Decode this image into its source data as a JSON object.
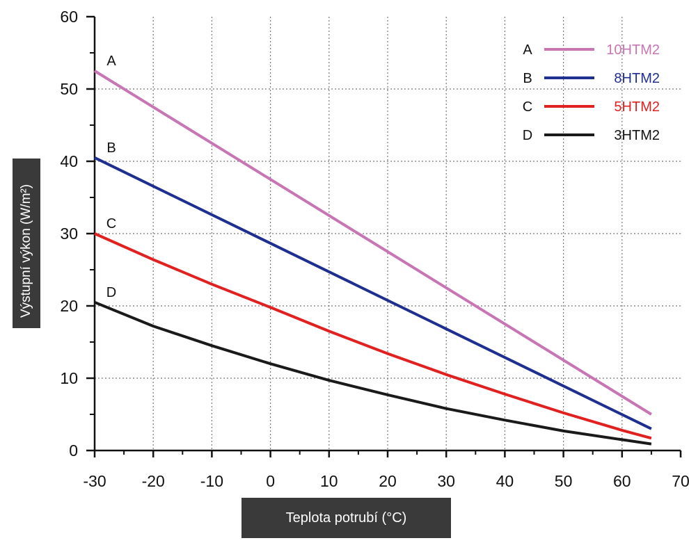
{
  "chart_data": {
    "type": "line",
    "title": "",
    "xlabel": "Teplota potrubí (°C)",
    "ylabel": "Výstupní výkon (W/m²)",
    "xlim": [
      -30,
      70
    ],
    "ylim": [
      0,
      60
    ],
    "xticks": [
      "-30",
      "-20",
      "-10",
      "0",
      "10",
      "20",
      "30",
      "40",
      "50",
      "60",
      "70"
    ],
    "yticks": [
      "0",
      "10",
      "20",
      "30",
      "40",
      "50",
      "60"
    ],
    "grid": true,
    "legend_position": "top-right",
    "series": [
      {
        "letter": "A",
        "name": "10HTM2",
        "color": "#c875b4",
        "x": [
          -30,
          65
        ],
        "y": [
          52.5,
          5.0
        ]
      },
      {
        "letter": "B",
        "name": "8HTM2",
        "color": "#1f2f8f",
        "x": [
          -30,
          65
        ],
        "y": [
          40.5,
          3.0
        ]
      },
      {
        "letter": "C",
        "name": "5HTM2",
        "color": "#e0211f",
        "x": [
          -30,
          -20,
          -10,
          0,
          10,
          20,
          30,
          40,
          50,
          60,
          65
        ],
        "y": [
          30.0,
          26.4,
          23.0,
          19.8,
          16.5,
          13.4,
          10.5,
          7.8,
          5.2,
          2.8,
          1.7
        ]
      },
      {
        "letter": "D",
        "name": "3HTM2",
        "color": "#1a1a1a",
        "x": [
          -30,
          -20,
          -10,
          0,
          10,
          20,
          30,
          40,
          50,
          60,
          65
        ],
        "y": [
          20.5,
          17.2,
          14.5,
          12.0,
          9.7,
          7.7,
          5.8,
          4.2,
          2.7,
          1.5,
          0.9
        ]
      }
    ]
  }
}
